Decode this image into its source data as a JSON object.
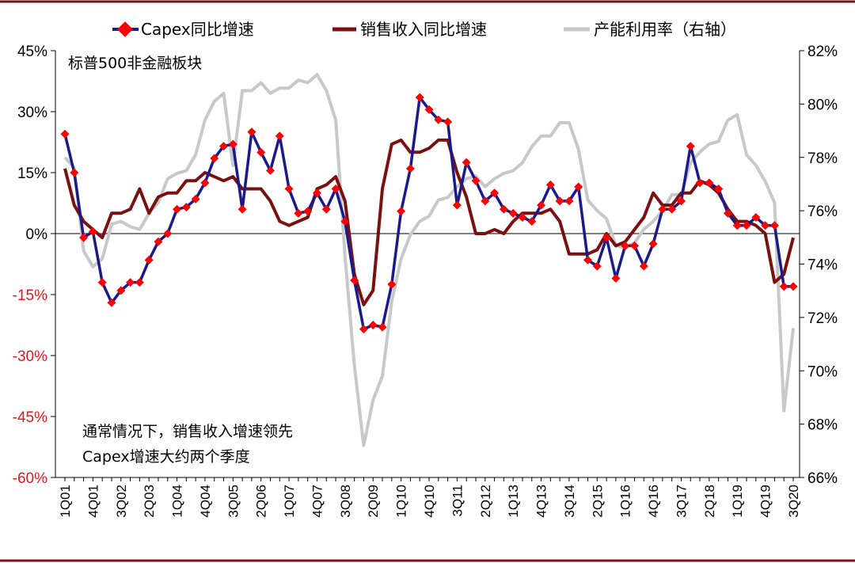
{
  "chart_data": {
    "type": "line",
    "subtitle": "标普500非金融板块",
    "annotation": [
      "通常情况下，销售收入增速领先",
      "Capex增速大约两个季度"
    ],
    "left_axis": {
      "ticks": [
        "45%",
        "30%",
        "15%",
        "0%",
        "-15%",
        "-30%",
        "-45%",
        "-60%"
      ],
      "ylim": [
        -60,
        45
      ]
    },
    "right_axis": {
      "ticks": [
        "82%",
        "80%",
        "78%",
        "76%",
        "74%",
        "72%",
        "70%",
        "68%",
        "66%"
      ],
      "ylim": [
        66,
        82
      ]
    },
    "x_tick_labels": [
      "1Q01",
      "4Q01",
      "3Q02",
      "2Q03",
      "1Q04",
      "4Q04",
      "3Q05",
      "2Q06",
      "1Q07",
      "4Q07",
      "3Q08",
      "2Q09",
      "1Q10",
      "4Q10",
      "3Q11",
      "2Q12",
      "1Q13",
      "4Q13",
      "3Q14",
      "2Q15",
      "1Q16",
      "4Q16",
      "3Q17",
      "2Q18",
      "1Q19",
      "4Q19",
      "3Q20"
    ],
    "x": [
      "1Q01",
      "2Q01",
      "3Q01",
      "4Q01",
      "1Q02",
      "2Q02",
      "3Q02",
      "4Q02",
      "1Q03",
      "2Q03",
      "3Q03",
      "4Q03",
      "1Q04",
      "2Q04",
      "3Q04",
      "4Q04",
      "1Q05",
      "2Q05",
      "3Q05",
      "4Q05",
      "1Q06",
      "2Q06",
      "3Q06",
      "4Q06",
      "1Q07",
      "2Q07",
      "3Q07",
      "4Q07",
      "1Q08",
      "2Q08",
      "3Q08",
      "4Q08",
      "1Q09",
      "2Q09",
      "3Q09",
      "4Q09",
      "1Q10",
      "2Q10",
      "3Q10",
      "4Q10",
      "1Q11",
      "2Q11",
      "3Q11",
      "4Q11",
      "1Q12",
      "2Q12",
      "3Q12",
      "4Q12",
      "1Q13",
      "2Q13",
      "3Q13",
      "4Q13",
      "1Q14",
      "2Q14",
      "3Q14",
      "4Q14",
      "1Q15",
      "2Q15",
      "3Q15",
      "4Q15",
      "1Q16",
      "2Q16",
      "3Q16",
      "4Q16",
      "1Q17",
      "2Q17",
      "3Q17",
      "4Q17",
      "1Q18",
      "2Q18",
      "3Q18",
      "4Q18",
      "1Q19",
      "2Q19",
      "3Q19",
      "4Q19",
      "1Q20",
      "2Q20",
      "3Q20"
    ],
    "series": [
      {
        "name": "Capex同比增速",
        "axis": "left",
        "color": "#1a1a8c",
        "marker_color": "#ff0000",
        "values": [
          24.5,
          15,
          -1,
          0.5,
          -12,
          -17,
          -14,
          -12,
          -12,
          -6.5,
          -2,
          0,
          6,
          6.5,
          8.5,
          12.5,
          18.5,
          21.5,
          22,
          6,
          25,
          20,
          15.5,
          24,
          11,
          5,
          5.5,
          10,
          6,
          11,
          3,
          -11.5,
          -23.5,
          -22.5,
          -23,
          -12.5,
          5.5,
          16,
          33.5,
          30.5,
          28,
          27.5,
          7,
          17.5,
          13,
          8,
          10,
          6,
          5,
          4,
          3,
          7,
          12,
          8,
          8,
          11.5,
          -6.5,
          -8,
          -1,
          -11,
          -3,
          -3,
          -8,
          -2.5,
          6,
          6,
          8,
          21.5,
          12.5,
          12.5,
          11,
          5,
          2,
          2,
          4,
          2,
          2,
          -13,
          -13
        ]
      },
      {
        "name": "销售收入同比增速",
        "axis": "left",
        "color": "#7b1010",
        "values": [
          16,
          7,
          3,
          1,
          -1,
          5,
          5,
          6,
          11,
          5,
          9,
          10,
          10,
          13,
          13,
          15,
          14,
          13,
          14,
          11,
          11,
          11,
          8,
          3,
          2,
          3,
          4,
          11,
          12,
          14,
          8,
          -10,
          -17.5,
          -14,
          11,
          22,
          23,
          20,
          20,
          21,
          23,
          23,
          15,
          9,
          0,
          0,
          1,
          0,
          3,
          5,
          5,
          5,
          6,
          3,
          -5,
          -5,
          -5,
          -4,
          0,
          -3,
          -2,
          1,
          4,
          10,
          7,
          7,
          10,
          10,
          13,
          12,
          10,
          6,
          3,
          3,
          2,
          0,
          -12,
          -10,
          -1
        ]
      },
      {
        "name": "产能利用率（右轴）",
        "axis": "right",
        "color": "#c8c8c8",
        "values": [
          78,
          77.6,
          74.5,
          73.9,
          74.2,
          75.5,
          75.6,
          75.4,
          75.3,
          75.9,
          76.3,
          77.2,
          77.4,
          77.5,
          78.1,
          79.4,
          80.1,
          80.4,
          77.7,
          80.5,
          80.5,
          80.8,
          80.4,
          80.6,
          80.6,
          80.9,
          80.8,
          81.1,
          80.5,
          79.4,
          74.3,
          70.2,
          67.2,
          68.9,
          69.8,
          72.6,
          74.2,
          75.1,
          75.6,
          75.8,
          76.4,
          76.5,
          76.9,
          77.2,
          77.3,
          76.9,
          77.2,
          77.4,
          77.5,
          77.8,
          78.4,
          78.8,
          78.8,
          79.3,
          79.3,
          78.3,
          76.4,
          76,
          75.7,
          74.7,
          74.6,
          74.8,
          75.3,
          75.6,
          76,
          76.6,
          76.6,
          77.8,
          78.2,
          78.5,
          78.6,
          79.4,
          79.6,
          78.1,
          77.7,
          77.1,
          76.3,
          68.5,
          71.6
        ]
      }
    ]
  }
}
